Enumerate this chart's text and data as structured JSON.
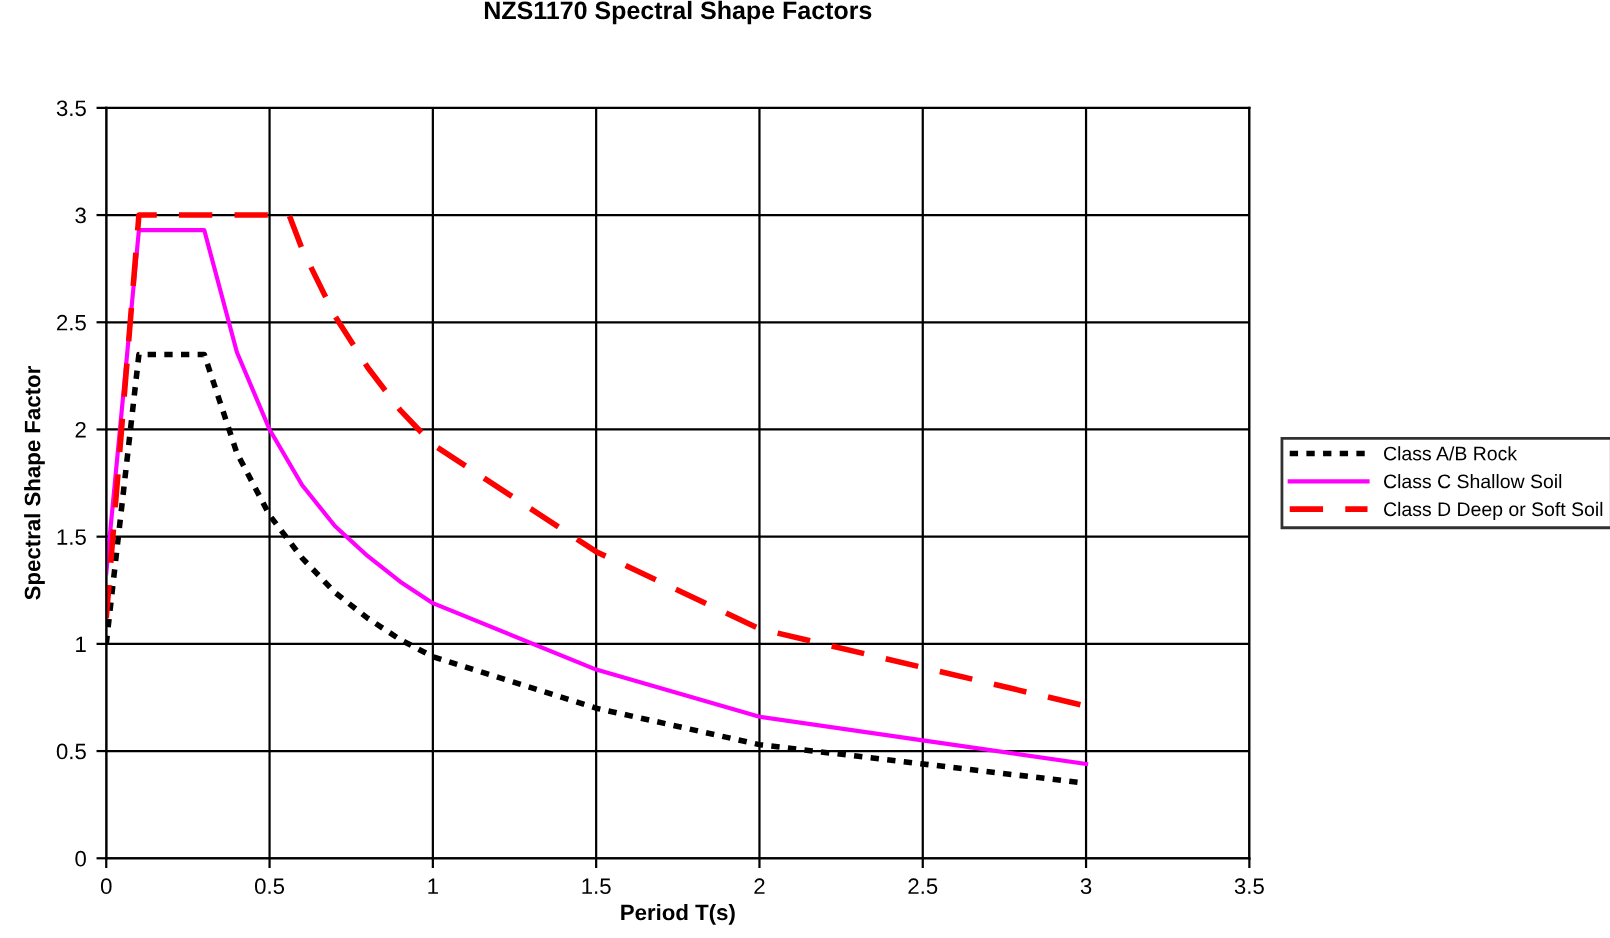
{
  "chart_data": {
    "type": "line",
    "title": "NZS1170 Spectral Shape Factors",
    "xlabel": "Period T(s)",
    "ylabel": "Spectral Shape Factor",
    "xlim": [
      0,
      3.5
    ],
    "xticks": [
      0,
      0.5,
      1,
      1.5,
      2,
      2.5,
      3,
      3.5
    ],
    "ylim": [
      0,
      3.5
    ],
    "yticks": [
      0,
      0.5,
      1,
      1.5,
      2,
      2.5,
      3,
      3.5
    ],
    "grid": true,
    "legend": "right",
    "marker": "none",
    "series": [
      {
        "name": "Class A/B Rock",
        "color": "#000000",
        "line_style": "dotted",
        "x": [
          0,
          0.1,
          0.2,
          0.3,
          0.4,
          0.5,
          0.6,
          0.7,
          0.8,
          0.9,
          1.0,
          1.5,
          2.0,
          2.5,
          3.0
        ],
        "values": [
          1.0,
          2.35,
          2.35,
          2.35,
          1.89,
          1.6,
          1.4,
          1.24,
          1.12,
          1.02,
          0.94,
          0.7,
          0.53,
          0.44,
          0.35
        ]
      },
      {
        "name": "Class C Shallow Soil",
        "color": "#ff00ff",
        "line_style": "solid",
        "x": [
          0,
          0.1,
          0.2,
          0.3,
          0.4,
          0.5,
          0.6,
          0.7,
          0.8,
          0.9,
          1.0,
          1.5,
          2.0,
          2.5,
          3.0
        ],
        "values": [
          1.33,
          2.93,
          2.93,
          2.93,
          2.36,
          2.0,
          1.74,
          1.55,
          1.41,
          1.29,
          1.19,
          0.88,
          0.66,
          0.55,
          0.44
        ]
      },
      {
        "name": "Class D Deep or Soft Soil",
        "color": "#ff0000",
        "line_style": "dashed",
        "x": [
          0,
          0.1,
          0.2,
          0.3,
          0.4,
          0.5,
          0.56,
          0.6,
          0.7,
          0.8,
          0.9,
          1.0,
          1.5,
          2.0,
          2.5,
          3.0
        ],
        "values": [
          1.12,
          3.0,
          3.0,
          3.0,
          3.0,
          3.0,
          3.0,
          2.84,
          2.53,
          2.29,
          2.09,
          1.93,
          1.43,
          1.07,
          0.89,
          0.71
        ]
      }
    ]
  }
}
